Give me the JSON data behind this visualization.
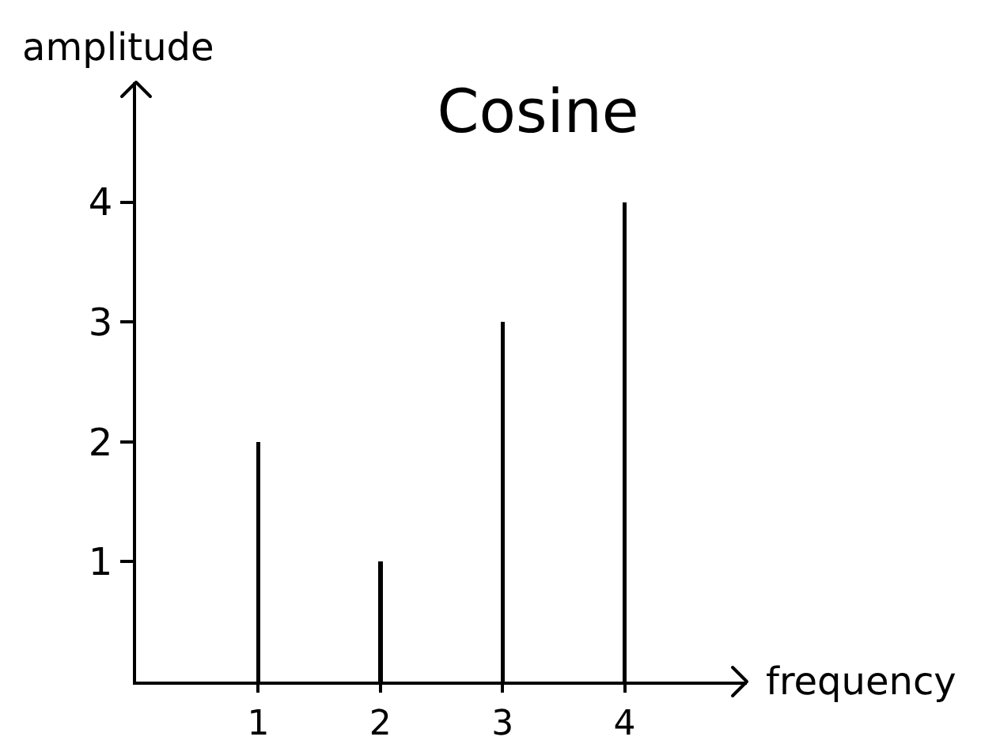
{
  "chart_data": {
    "type": "bar",
    "title": "Cosine",
    "xlabel": "frequency",
    "ylabel": "amplitude",
    "x": [
      1,
      2,
      3,
      4
    ],
    "values": [
      2,
      1,
      3,
      4
    ],
    "color": "#000000",
    "xlim": [
      0,
      5
    ],
    "ylim": [
      0,
      5
    ],
    "xticks": [
      1,
      2,
      3,
      4
    ],
    "yticks": [
      1,
      2,
      3,
      4
    ]
  }
}
